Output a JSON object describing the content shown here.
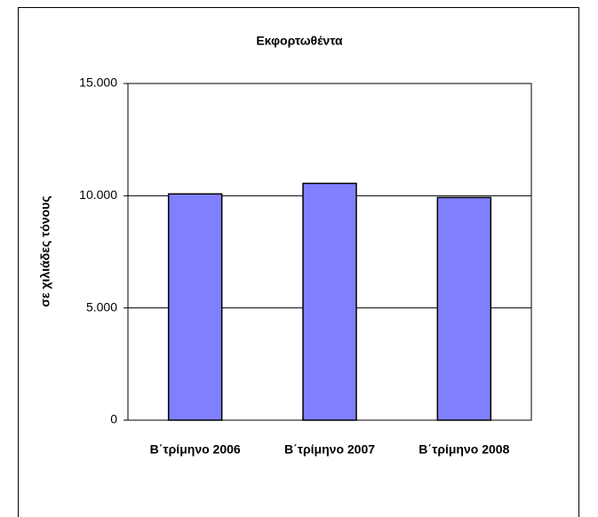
{
  "chart_data": {
    "type": "bar",
    "title": "Εκφορτωθέντα",
    "ylabel": "σε χιλιάδες τόνους",
    "categories": [
      "Β΄τρίμηνο 2006",
      "Β΄τρίμηνο 2007",
      "Β΄τρίμηνο 2008"
    ],
    "values": [
      10080,
      10550,
      9920
    ],
    "color": "#8080ff",
    "ylim": [
      0,
      15000
    ],
    "yticks": [
      0,
      {
        "value": 5000,
        "label": "5.000"
      },
      {
        "value": 10000,
        "label": "10.000"
      },
      {
        "value": 15000,
        "label": "15.000"
      }
    ],
    "grid": true
  }
}
